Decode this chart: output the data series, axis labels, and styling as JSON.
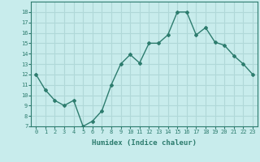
{
  "x": [
    0,
    1,
    2,
    3,
    4,
    5,
    6,
    7,
    8,
    9,
    10,
    11,
    12,
    13,
    14,
    15,
    16,
    17,
    18,
    19,
    20,
    21,
    22,
    23
  ],
  "y": [
    12,
    10.5,
    9.5,
    9,
    9.5,
    7,
    7.5,
    8.5,
    11,
    13,
    13.9,
    13.1,
    15,
    15,
    15.8,
    18,
    18,
    15.8,
    16.5,
    15.1,
    14.8,
    13.8,
    13,
    12
  ],
  "line_color": "#2d7c6e",
  "marker": "D",
  "marker_size": 2,
  "line_width": 1.0,
  "xlabel": "Humidex (Indice chaleur)",
  "xlim": [
    -0.5,
    23.5
  ],
  "ylim": [
    7,
    19
  ],
  "yticks": [
    7,
    8,
    9,
    10,
    11,
    12,
    13,
    14,
    15,
    16,
    17,
    18
  ],
  "xticks": [
    0,
    1,
    2,
    3,
    4,
    5,
    6,
    7,
    8,
    9,
    10,
    11,
    12,
    13,
    14,
    15,
    16,
    17,
    18,
    19,
    20,
    21,
    22,
    23
  ],
  "bg_color": "#c8ecec",
  "grid_color": "#b0d8d8",
  "tick_color": "#2d7c6e",
  "label_color": "#2d7c6e",
  "xlabel_fontsize": 6.5,
  "tick_fontsize": 5.0
}
